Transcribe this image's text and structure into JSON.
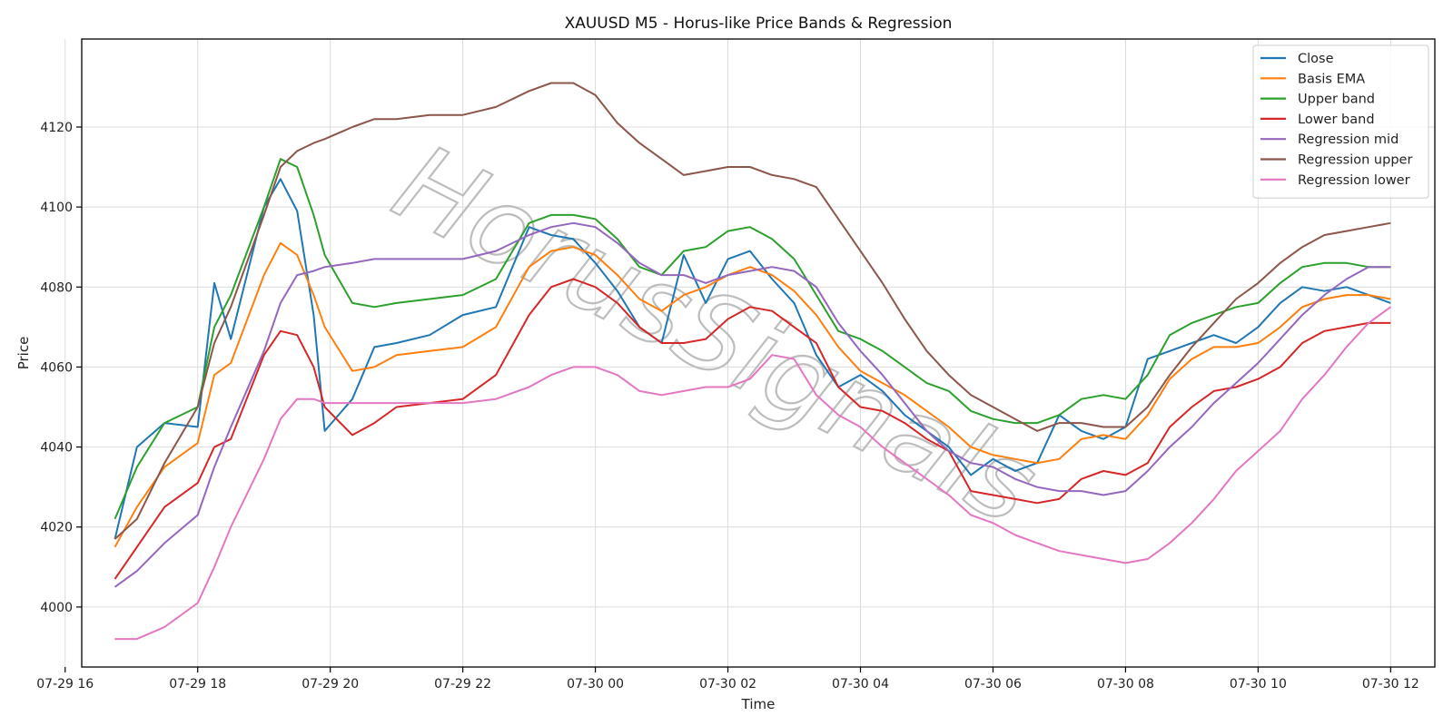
{
  "chart_data": {
    "type": "line",
    "title": "XAUUSD M5 - Horus-like Price Bands & Regression",
    "xlabel": "Time",
    "ylabel": "Price",
    "watermark": "HorusSignals",
    "xlim": [
      "2024-07-29 16:15",
      "2024-07-30 12:40"
    ],
    "ylim": [
      3985,
      4142
    ],
    "x_ticks": [
      {
        "label": "07-29 16",
        "t": "2024-07-29 16:00"
      },
      {
        "label": "07-29 18",
        "t": "2024-07-29 18:00"
      },
      {
        "label": "07-29 20",
        "t": "2024-07-29 20:00"
      },
      {
        "label": "07-29 22",
        "t": "2024-07-29 22:00"
      },
      {
        "label": "07-30 00",
        "t": "2024-07-30 00:00"
      },
      {
        "label": "07-30 02",
        "t": "2024-07-30 02:00"
      },
      {
        "label": "07-30 04",
        "t": "2024-07-30 04:00"
      },
      {
        "label": "07-30 06",
        "t": "2024-07-30 06:00"
      },
      {
        "label": "07-30 08",
        "t": "2024-07-30 08:00"
      },
      {
        "label": "07-30 10",
        "t": "2024-07-30 10:00"
      },
      {
        "label": "07-30 12",
        "t": "2024-07-30 12:00"
      }
    ],
    "y_ticks": [
      4000,
      4020,
      4040,
      4060,
      4080,
      4100,
      4120
    ],
    "grid": true,
    "legend_position": "top-right",
    "x": [
      "2024-07-29 16:45",
      "2024-07-29 17:05",
      "2024-07-29 17:30",
      "2024-07-29 18:00",
      "2024-07-29 18:15",
      "2024-07-29 18:30",
      "2024-07-29 19:00",
      "2024-07-29 19:15",
      "2024-07-29 19:30",
      "2024-07-29 19:45",
      "2024-07-29 19:55",
      "2024-07-29 20:20",
      "2024-07-29 20:40",
      "2024-07-29 21:00",
      "2024-07-29 21:30",
      "2024-07-29 22:00",
      "2024-07-29 22:30",
      "2024-07-29 23:00",
      "2024-07-29 23:20",
      "2024-07-29 23:40",
      "2024-07-30 00:00",
      "2024-07-30 00:20",
      "2024-07-30 00:40",
      "2024-07-30 01:00",
      "2024-07-30 01:20",
      "2024-07-30 01:40",
      "2024-07-30 02:00",
      "2024-07-30 02:20",
      "2024-07-30 02:40",
      "2024-07-30 03:00",
      "2024-07-30 03:20",
      "2024-07-30 03:40",
      "2024-07-30 04:00",
      "2024-07-30 04:20",
      "2024-07-30 04:40",
      "2024-07-30 05:00",
      "2024-07-30 05:20",
      "2024-07-30 05:40",
      "2024-07-30 06:00",
      "2024-07-30 06:20",
      "2024-07-30 06:40",
      "2024-07-30 07:00",
      "2024-07-30 07:20",
      "2024-07-30 07:40",
      "2024-07-30 08:00",
      "2024-07-30 08:20",
      "2024-07-30 08:40",
      "2024-07-30 09:00",
      "2024-07-30 09:20",
      "2024-07-30 09:40",
      "2024-07-30 10:00",
      "2024-07-30 10:20",
      "2024-07-30 10:40",
      "2024-07-30 11:00",
      "2024-07-30 11:20",
      "2024-07-30 11:40",
      "2024-07-30 12:00"
    ],
    "series": [
      {
        "name": "Close",
        "color": "#1f77b4",
        "values": [
          4017,
          4040,
          4046,
          4045,
          4081,
          4067,
          4100,
          4107,
          4099,
          4073,
          4044,
          4052,
          4065,
          4066,
          4068,
          4073,
          4075,
          4095,
          4093,
          4092,
          4086,
          4079,
          4070,
          4066,
          4088,
          4076,
          4087,
          4089,
          4082,
          4076,
          4063,
          4055,
          4058,
          4054,
          4048,
          4044,
          4040,
          4033,
          4037,
          4034,
          4036,
          4048,
          4044,
          4042,
          4045,
          4062,
          4064,
          4066,
          4068,
          4066,
          4070,
          4076,
          4080,
          4079,
          4080,
          4078,
          4076
        ]
      },
      {
        "name": "Basis EMA",
        "color": "#ff7f0e",
        "values": [
          4015,
          4025,
          4035,
          4041,
          4058,
          4061,
          4083,
          4091,
          4088,
          4078,
          4070,
          4059,
          4060,
          4063,
          4064,
          4065,
          4070,
          4085,
          4089,
          4090,
          4088,
          4083,
          4077,
          4074,
          4078,
          4080,
          4083,
          4085,
          4083,
          4079,
          4073,
          4065,
          4059,
          4056,
          4053,
          4049,
          4045,
          4040,
          4038,
          4037,
          4036,
          4037,
          4042,
          4043,
          4042,
          4048,
          4057,
          4062,
          4065,
          4065,
          4066,
          4070,
          4075,
          4077,
          4078,
          4078,
          4077
        ]
      },
      {
        "name": "Upper band",
        "color": "#2ca02c",
        "values": [
          4022,
          4035,
          4046,
          4050,
          4070,
          4078,
          4100,
          4112,
          4110,
          4098,
          4088,
          4076,
          4075,
          4076,
          4077,
          4078,
          4082,
          4096,
          4098,
          4098,
          4097,
          4092,
          4085,
          4083,
          4089,
          4090,
          4094,
          4095,
          4092,
          4087,
          4078,
          4069,
          4067,
          4064,
          4060,
          4056,
          4054,
          4049,
          4047,
          4046,
          4046,
          4048,
          4052,
          4053,
          4052,
          4058,
          4068,
          4071,
          4073,
          4075,
          4076,
          4081,
          4085,
          4086,
          4086,
          4085,
          4085
        ]
      },
      {
        "name": "Lower band",
        "color": "#d62728",
        "values": [
          4007,
          4015,
          4025,
          4031,
          4040,
          4042,
          4063,
          4069,
          4068,
          4060,
          4050,
          4043,
          4046,
          4050,
          4051,
          4052,
          4058,
          4073,
          4080,
          4082,
          4080,
          4076,
          4070,
          4066,
          4066,
          4067,
          4072,
          4075,
          4074,
          4070,
          4066,
          4055,
          4050,
          4049,
          4046,
          4042,
          4039,
          4029,
          4028,
          4027,
          4026,
          4027,
          4032,
          4034,
          4033,
          4036,
          4045,
          4050,
          4054,
          4055,
          4057,
          4060,
          4066,
          4069,
          4070,
          4071,
          4071
        ]
      },
      {
        "name": "Regression mid",
        "color": "#9467bd",
        "values": [
          4005,
          4009,
          4016,
          4023,
          4035,
          4045,
          4064,
          4076,
          4083,
          4084,
          4085,
          4086,
          4087,
          4087,
          4087,
          4087,
          4089,
          4093,
          4095,
          4096,
          4095,
          4091,
          4086,
          4083,
          4083,
          4081,
          4083,
          4084,
          4085,
          4084,
          4080,
          4071,
          4064,
          4058,
          4051,
          4044,
          4039,
          4036,
          4035,
          4032,
          4030,
          4029,
          4029,
          4028,
          4029,
          4034,
          4040,
          4045,
          4051,
          4056,
          4061,
          4067,
          4073,
          4078,
          4082,
          4085,
          4085
        ]
      },
      {
        "name": "Regression upper",
        "color": "#8c564b",
        "values": [
          4017,
          4022,
          4036,
          4050,
          4066,
          4075,
          4098,
          4110,
          4114,
          4116,
          4117,
          4120,
          4122,
          4122,
          4123,
          4123,
          4125,
          4129,
          4131,
          4131,
          4128,
          4121,
          4116,
          4112,
          4108,
          4109,
          4110,
          4110,
          4108,
          4107,
          4105,
          4097,
          4089,
          4081,
          4072,
          4064,
          4058,
          4053,
          4050,
          4047,
          4044,
          4046,
          4046,
          4045,
          4045,
          4050,
          4058,
          4065,
          4071,
          4077,
          4081,
          4086,
          4090,
          4093,
          4094,
          4095,
          4096
        ]
      },
      {
        "name": "Regression lower",
        "color": "#e377c2",
        "values": [
          3992,
          3992,
          3995,
          4001,
          4010,
          4020,
          4037,
          4047,
          4052,
          4052,
          4051,
          4051,
          4051,
          4051,
          4051,
          4051,
          4052,
          4055,
          4058,
          4060,
          4060,
          4058,
          4054,
          4053,
          4054,
          4055,
          4055,
          4057,
          4063,
          4062,
          4053,
          4048,
          4045,
          4040,
          4036,
          4032,
          4028,
          4023,
          4021,
          4018,
          4016,
          4014,
          4013,
          4012,
          4011,
          4012,
          4016,
          4021,
          4027,
          4034,
          4039,
          4044,
          4052,
          4058,
          4065,
          4071,
          4075
        ]
      }
    ]
  }
}
